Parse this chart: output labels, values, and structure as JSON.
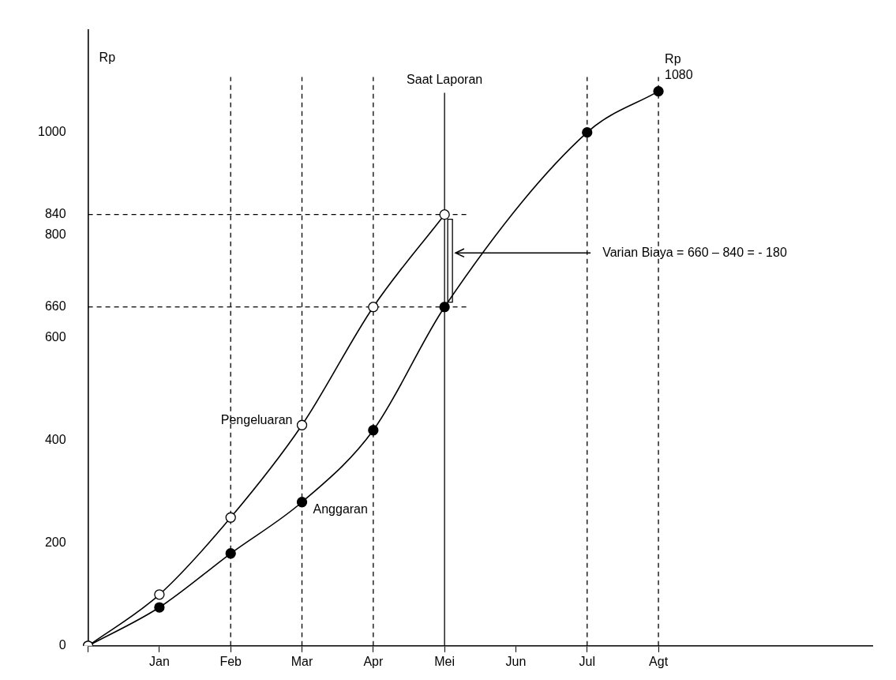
{
  "chart_data": {
    "type": "line",
    "ylabel": "Rp",
    "categories": [
      null,
      "Jan",
      "Feb",
      "Mar",
      "Apr",
      "Mei",
      "Jun",
      "Jul",
      "Agt",
      null,
      null,
      null
    ],
    "series": [
      {
        "name": "Pengeluaran",
        "color": "#000000",
        "values": [
          0,
          100,
          250,
          430,
          660,
          840,
          null,
          null,
          null,
          null,
          null,
          null
        ]
      },
      {
        "name": "Anggaran",
        "color": "#000000",
        "values": [
          0,
          75,
          180,
          280,
          420,
          660,
          null,
          1000,
          1080,
          null,
          null,
          null
        ]
      }
    ],
    "ylim": [
      0,
      1200
    ],
    "yticks": [
      0,
      200,
      400,
      600,
      660,
      800,
      840,
      1000
    ],
    "ref_lines": [
      {
        "axis": "x",
        "value": "Mei",
        "label": "Saat Laporan",
        "line_style": "solid"
      },
      {
        "axis": "y",
        "value": 840,
        "line_style": "dashed"
      },
      {
        "axis": "y",
        "value": 660,
        "line_style": "dashed"
      },
      {
        "axis": "x",
        "value": "Feb",
        "line_style": "dashed"
      },
      {
        "axis": "x",
        "value": "Mar",
        "line_style": "dashed"
      },
      {
        "axis": "x",
        "value": "Apr",
        "line_style": "dashed"
      },
      {
        "axis": "x",
        "value": "Jul",
        "line_style": "dashed"
      },
      {
        "axis": "x",
        "value": "Agt",
        "line_style": "dashed"
      }
    ],
    "annotations": [
      {
        "text": "Rp 1080",
        "x": "Agt",
        "y": 1080
      },
      "Varian Biaya = 660 – 840 = - 180"
    ],
    "marker": "circle",
    "grid": false,
    "legend": false
  }
}
